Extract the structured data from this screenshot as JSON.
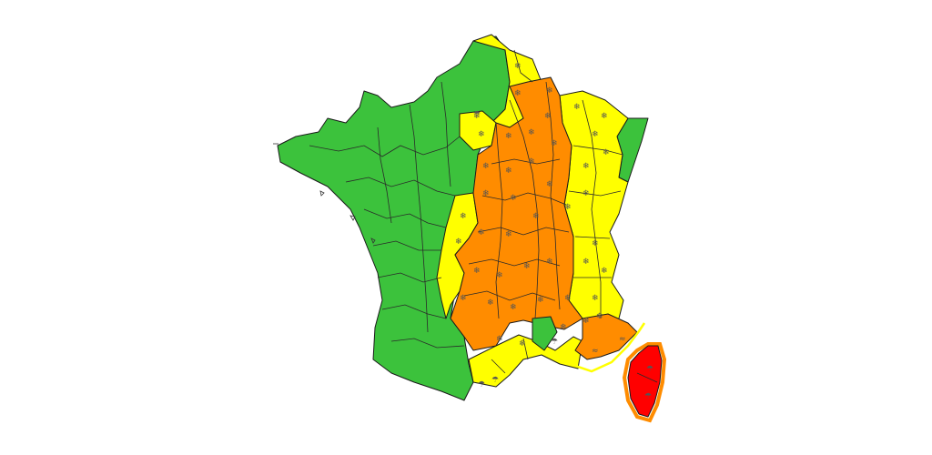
{
  "legend_colors": {
    "green": "#3cc23c",
    "yellow": "#ffff00",
    "orange": "#ff8c00",
    "red": "#ff0000",
    "coast_outline_yellow": "#ffff00",
    "coast_outline_orange": "#ff8c00"
  },
  "vigilance_regions": [
    {
      "id": "west",
      "level": "green",
      "hazards": []
    },
    {
      "id": "north-east-strip",
      "level": "green",
      "hazards": []
    },
    {
      "id": "south-west",
      "level": "green",
      "hazards": []
    },
    {
      "id": "north-border",
      "level": "yellow",
      "hazards": [
        "snow-ice"
      ]
    },
    {
      "id": "east-border",
      "level": "yellow",
      "hazards": [
        "snow-ice"
      ]
    },
    {
      "id": "centre-west",
      "level": "yellow",
      "hazards": [
        "snow-ice"
      ]
    },
    {
      "id": "mediterranean",
      "level": "yellow",
      "hazards": [
        "snow-ice",
        "rain-flood"
      ]
    },
    {
      "id": "paris-area",
      "level": "yellow",
      "hazards": [
        "snow-ice",
        "rain-flood"
      ]
    },
    {
      "id": "central-france",
      "level": "orange",
      "hazards": [
        "snow-ice"
      ]
    },
    {
      "id": "var-alpes-maritimes",
      "level": "orange",
      "hazards": [
        "wind"
      ]
    },
    {
      "id": "corsica",
      "level": "red",
      "hazards": [
        "rain-flood"
      ]
    }
  ],
  "icons": {
    "snow_ice": "snow-ice-icon",
    "rain_flood": "rain-flood-icon",
    "wind": "wind-icon"
  }
}
